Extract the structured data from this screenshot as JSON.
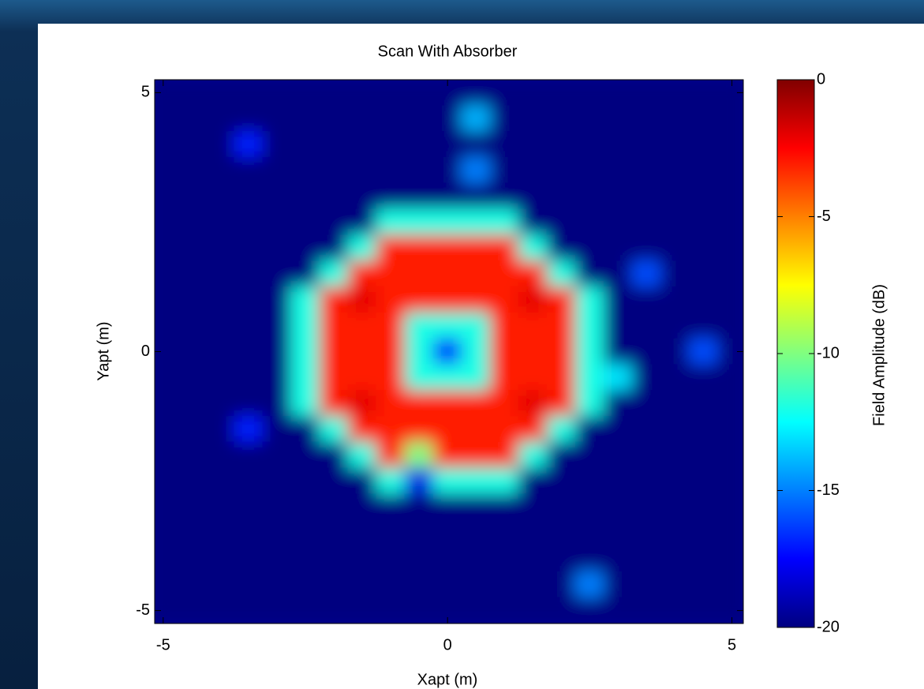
{
  "chart_data": {
    "type": "heatmap",
    "title": "Scan With Absorber",
    "xlabel": "Xapt (m)",
    "ylabel": "Yapt (m)",
    "x": [
      -5,
      -4.5,
      -4,
      -3.5,
      -3,
      -2.5,
      -2,
      -1.5,
      -1,
      -0.5,
      0,
      0.5,
      1,
      1.5,
      2,
      2.5,
      3,
      3.5,
      4,
      4.5,
      5
    ],
    "y": [
      5,
      4.5,
      4,
      3.5,
      3,
      2.5,
      2,
      1.5,
      1,
      0.5,
      0,
      -0.5,
      -1,
      -1.5,
      -2,
      -2.5,
      -3,
      -3.5,
      -4,
      -4.5,
      -5
    ],
    "z": [
      [
        -20,
        -20,
        -20,
        -20,
        -20,
        -20,
        -20,
        -20,
        -20,
        -20,
        -20,
        -20,
        -20,
        -20,
        -20,
        -20,
        -20,
        -20,
        -20,
        -20,
        -20
      ],
      [
        -20,
        -20,
        -20,
        -20,
        -20,
        -20,
        -20,
        -20,
        -20,
        -20,
        -20,
        -14,
        -20,
        -20,
        -20,
        -20,
        -20,
        -20,
        -20,
        -20,
        -20
      ],
      [
        -20,
        -20,
        -20,
        -17,
        -20,
        -20,
        -20,
        -20,
        -20,
        -20,
        -20,
        -20,
        -20,
        -20,
        -20,
        -20,
        -20,
        -20,
        -20,
        -20,
        -20
      ],
      [
        -20,
        -20,
        -20,
        -20,
        -20,
        -20,
        -20,
        -20,
        -20,
        -20,
        -20,
        -15,
        -20,
        -20,
        -20,
        -20,
        -20,
        -20,
        -20,
        -20,
        -20
      ],
      [
        -20,
        -20,
        -20,
        -20,
        -20,
        -20,
        -20,
        -20,
        -20,
        -20,
        -20,
        -20,
        -20,
        -20,
        -20,
        -20,
        -20,
        -20,
        -20,
        -20,
        -20
      ],
      [
        -20,
        -20,
        -20,
        -20,
        -20,
        -20,
        -20,
        -20,
        -12,
        -12,
        -12,
        -12,
        -12,
        -20,
        -20,
        -20,
        -20,
        -20,
        -20,
        -20,
        -20
      ],
      [
        -20,
        -20,
        -20,
        -20,
        -20,
        -20,
        -20,
        -12,
        -3,
        -3,
        -3,
        -3,
        -3,
        -12,
        -20,
        -20,
        -20,
        -20,
        -20,
        -20,
        -20
      ],
      [
        -20,
        -20,
        -20,
        -20,
        -20,
        -20,
        -12,
        -3,
        -3,
        -3,
        -3,
        -3,
        -3,
        -3,
        -12,
        -20,
        -20,
        -16,
        -20,
        -20,
        -20
      ],
      [
        -20,
        -20,
        -20,
        -20,
        -20,
        -12,
        -3,
        -2,
        -3,
        -3,
        -3,
        -3,
        -3,
        -2,
        -3,
        -12,
        -20,
        -20,
        -20,
        -20,
        -20
      ],
      [
        -20,
        -20,
        -20,
        -20,
        -20,
        -12,
        -3,
        -3,
        -3,
        -12,
        -12,
        -12,
        -3,
        -3,
        -3,
        -12,
        -20,
        -20,
        -20,
        -20,
        -20
      ],
      [
        -20,
        -20,
        -20,
        -20,
        -20,
        -12,
        -3,
        -3,
        -3,
        -12,
        -17,
        -12,
        -3,
        -3,
        -3,
        -12,
        -20,
        -20,
        -20,
        -16,
        -20
      ],
      [
        -20,
        -20,
        -20,
        -20,
        -20,
        -12,
        -3,
        -3,
        -3,
        -12,
        -12,
        -12,
        -3,
        -3,
        -3,
        -12,
        -13,
        -20,
        -20,
        -20,
        -20
      ],
      [
        -20,
        -20,
        -20,
        -20,
        -20,
        -12,
        -3,
        -2,
        -3,
        -3,
        -3,
        -3,
        -3,
        -2,
        -3,
        -12,
        -20,
        -20,
        -20,
        -20,
        -20
      ],
      [
        -20,
        -20,
        -20,
        -17,
        -20,
        -20,
        -12,
        -3,
        -3,
        -3,
        -3,
        -3,
        -3,
        -3,
        -12,
        -20,
        -20,
        -20,
        -20,
        -20,
        -20
      ],
      [
        -20,
        -20,
        -20,
        -20,
        -20,
        -20,
        -20,
        -12,
        -3,
        -10,
        -3,
        -3,
        -3,
        -12,
        -20,
        -20,
        -20,
        -20,
        -20,
        -20,
        -20
      ],
      [
        -20,
        -20,
        -20,
        -20,
        -20,
        -20,
        -20,
        -20,
        -12,
        -18,
        -12,
        -12,
        -12,
        -20,
        -20,
        -20,
        -20,
        -20,
        -20,
        -20,
        -20
      ],
      [
        -20,
        -20,
        -20,
        -20,
        -20,
        -20,
        -20,
        -20,
        -20,
        -20,
        -20,
        -20,
        -20,
        -20,
        -20,
        -20,
        -20,
        -20,
        -20,
        -20,
        -20
      ],
      [
        -20,
        -20,
        -20,
        -20,
        -20,
        -20,
        -20,
        -20,
        -20,
        -20,
        -20,
        -20,
        -20,
        -20,
        -20,
        -20,
        -20,
        -20,
        -20,
        -20,
        -20
      ],
      [
        -20,
        -20,
        -20,
        -20,
        -20,
        -20,
        -20,
        -20,
        -20,
        -20,
        -20,
        -20,
        -20,
        -20,
        -20,
        -20,
        -20,
        -20,
        -20,
        -20,
        -20
      ],
      [
        -20,
        -20,
        -20,
        -20,
        -20,
        -20,
        -20,
        -20,
        -20,
        -20,
        -20,
        -20,
        -20,
        -20,
        -20,
        -15,
        -20,
        -20,
        -20,
        -20,
        -20
      ],
      [
        -20,
        -20,
        -20,
        -20,
        -20,
        -20,
        -20,
        -20,
        -20,
        -20,
        -20,
        -20,
        -20,
        -20,
        -20,
        -20,
        -20,
        -20,
        -20,
        -20,
        -20
      ]
    ],
    "xlim": [
      -5.15,
      5.2
    ],
    "ylim": [
      -5.25,
      5.25
    ],
    "xticks": [
      -5,
      0,
      5
    ],
    "yticks": [
      -5,
      0,
      5
    ],
    "colorbar": {
      "label": "Field Amplitude (dB)",
      "colormap": "jet",
      "clim": [
        -20,
        0
      ],
      "ticks": [
        0,
        -5,
        -10,
        -15,
        -20
      ]
    }
  }
}
